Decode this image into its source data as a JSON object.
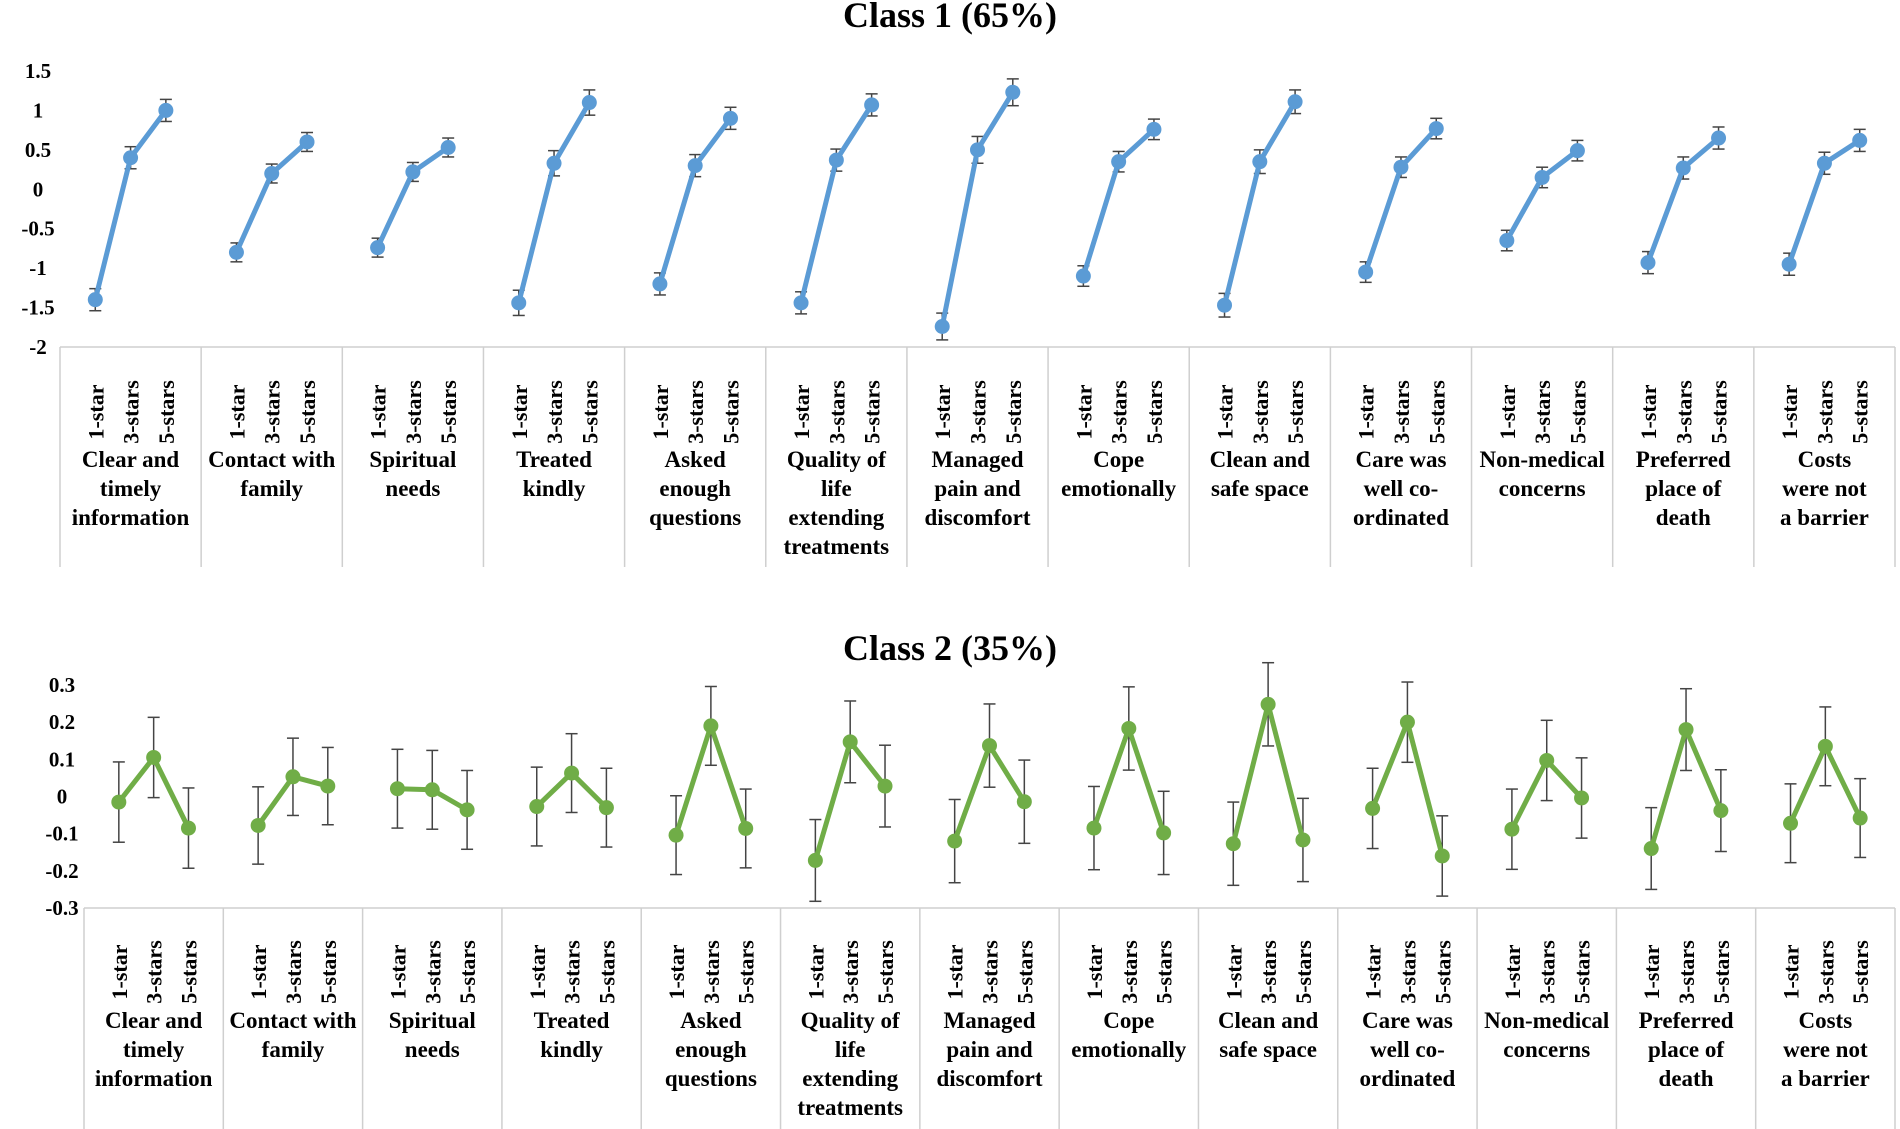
{
  "chart_data": [
    {
      "type": "line",
      "title": "Class 1 (65%)",
      "color": "#5B9BD5",
      "ylim": [
        -2,
        1.5
      ],
      "yticks": [
        "1.5",
        "1",
        "0.5",
        "0",
        "-0.5",
        "-1",
        "-1.5",
        "-2"
      ],
      "levels": [
        "1-star",
        "3-stars",
        "5-stars"
      ],
      "groups": [
        {
          "label": [
            "Clear and",
            "timely",
            "information"
          ],
          "values": [
            -1.4,
            0.4,
            1.0
          ],
          "err": 0.14
        },
        {
          "label": [
            "Contact with",
            "family"
          ],
          "values": [
            -0.8,
            0.2,
            0.6
          ],
          "err": 0.12
        },
        {
          "label": [
            "Spiritual",
            "needs"
          ],
          "values": [
            -0.74,
            0.22,
            0.53
          ],
          "err": 0.12
        },
        {
          "label": [
            "Treated",
            "kindly"
          ],
          "values": [
            -1.44,
            0.33,
            1.1
          ],
          "err": 0.16
        },
        {
          "label": [
            "Asked",
            "enough",
            "questions"
          ],
          "values": [
            -1.2,
            0.3,
            0.9
          ],
          "err": 0.14
        },
        {
          "label": [
            "Quality of",
            "life",
            "extending",
            "treatments"
          ],
          "values": [
            -1.44,
            0.37,
            1.07
          ],
          "err": 0.14
        },
        {
          "label": [
            "Managed",
            "pain and",
            "discomfort"
          ],
          "values": [
            -1.74,
            0.5,
            1.23
          ],
          "err": 0.17
        },
        {
          "label": [
            "Cope",
            "emotionally"
          ],
          "values": [
            -1.1,
            0.35,
            0.76
          ],
          "err": 0.13
        },
        {
          "label": [
            "Clean and",
            "safe space"
          ],
          "values": [
            -1.47,
            0.35,
            1.11
          ],
          "err": 0.15
        },
        {
          "label": [
            "Care was",
            "well co-",
            "ordinated"
          ],
          "values": [
            -1.05,
            0.28,
            0.77
          ],
          "err": 0.13
        },
        {
          "label": [
            "Non-medical",
            "concerns"
          ],
          "values": [
            -0.65,
            0.15,
            0.49
          ],
          "err": 0.13
        },
        {
          "label": [
            "Preferred",
            "place of",
            "death"
          ],
          "values": [
            -0.93,
            0.27,
            0.65
          ],
          "err": 0.14
        },
        {
          "label": [
            "Costs",
            "were not",
            "a barrier"
          ],
          "values": [
            -0.95,
            0.33,
            0.62
          ],
          "err": 0.14
        }
      ]
    },
    {
      "type": "line",
      "title": "Class 2 (35%)",
      "color": "#70AD47",
      "ylim": [
        -0.3,
        0.3
      ],
      "yticks": [
        "0.3",
        "0.2",
        "0.1",
        "0",
        "-0.1",
        "-0.2",
        "-0.3"
      ],
      "levels": [
        "1-star",
        "3-stars",
        "5-stars"
      ],
      "groups": [
        {
          "label": [
            "Clear and",
            "timely",
            "information"
          ],
          "values": [
            -0.015,
            0.105,
            -0.085
          ],
          "err": 0.108
        },
        {
          "label": [
            "Contact with",
            "family"
          ],
          "values": [
            -0.078,
            0.053,
            0.028
          ],
          "err": 0.104
        },
        {
          "label": [
            "Spiritual",
            "needs"
          ],
          "values": [
            0.021,
            0.018,
            -0.036
          ],
          "err": 0.106
        },
        {
          "label": [
            "Treated",
            "kindly"
          ],
          "values": [
            -0.027,
            0.063,
            -0.03
          ],
          "err": 0.106
        },
        {
          "label": [
            "Asked",
            "enough",
            "questions"
          ],
          "values": [
            -0.104,
            0.19,
            -0.086
          ],
          "err": 0.106
        },
        {
          "label": [
            "Quality of",
            "life",
            "extending",
            "treatments"
          ],
          "values": [
            -0.172,
            0.147,
            0.028
          ],
          "err": 0.11
        },
        {
          "label": [
            "Managed",
            "pain and",
            "discomfort"
          ],
          "values": [
            -0.12,
            0.137,
            -0.014
          ],
          "err": 0.112
        },
        {
          "label": [
            "Cope",
            "emotionally"
          ],
          "values": [
            -0.085,
            0.183,
            -0.098
          ],
          "err": 0.112
        },
        {
          "label": [
            "Clean and",
            "safe space"
          ],
          "values": [
            -0.127,
            0.248,
            -0.117
          ],
          "err": 0.112
        },
        {
          "label": [
            "Care was",
            "well co-",
            "ordinated"
          ],
          "values": [
            -0.032,
            0.2,
            -0.16
          ],
          "err": 0.108
        },
        {
          "label": [
            "Non-medical",
            "concerns"
          ],
          "values": [
            -0.088,
            0.097,
            -0.004
          ],
          "err": 0.108
        },
        {
          "label": [
            "Preferred",
            "place of",
            "death"
          ],
          "values": [
            -0.14,
            0.18,
            -0.038
          ],
          "err": 0.11
        },
        {
          "label": [
            "Costs",
            "were not",
            "a barrier"
          ],
          "values": [
            -0.072,
            0.135,
            -0.058
          ],
          "err": 0.106
        }
      ]
    }
  ]
}
